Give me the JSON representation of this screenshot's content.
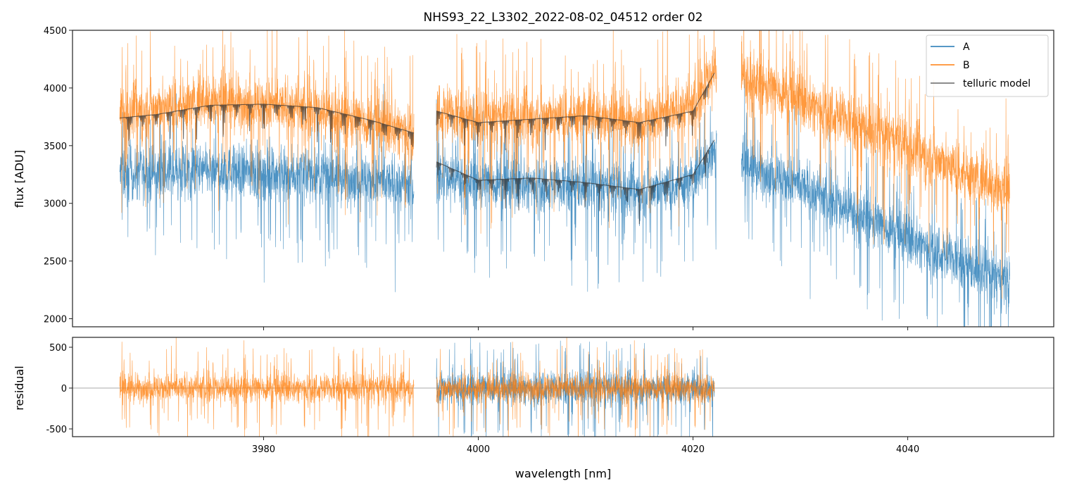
{
  "chart_data": [
    {
      "type": "line",
      "title": "NHS93_22_L3302_2022-08-02_04512  order 02",
      "xlabel": "",
      "ylabel": "flux [ADU]",
      "xlim": [
        3962.2,
        4053.6
      ],
      "ylim": [
        1930,
        4500
      ],
      "yticks": [
        2000,
        2500,
        3000,
        3500,
        4000,
        4500
      ],
      "xticks": [
        3980,
        4000,
        4020,
        4040
      ],
      "legend": {
        "placement": "top-right",
        "entries": [
          "A",
          "B",
          "telluric model"
        ]
      },
      "colors": {
        "A": "#1f77b4",
        "B": "#ff7f0e",
        "telluric": "#333333"
      },
      "series": [
        {
          "name": "A",
          "kind": "noisy",
          "noise": 260,
          "segments": [
            {
              "x": [
                3966.6,
                3975,
                3985,
                3994.0
              ],
              "y": [
                3250,
                3280,
                3250,
                3150
              ]
            },
            {
              "x": [
                3996.1,
                4000,
                4010,
                4015,
                4020,
                4022.2
              ],
              "y": [
                3250,
                3180,
                3150,
                3100,
                3200,
                3500
              ]
            },
            {
              "x": [
                4024.5,
                4030,
                4040,
                4049.5
              ],
              "y": [
                3350,
                3150,
                2700,
                2300
              ]
            }
          ]
        },
        {
          "name": "B",
          "kind": "noisy",
          "noise": 280,
          "segments": [
            {
              "x": [
                3966.6,
                3975,
                3985,
                3994.0
              ],
              "y": [
                3780,
                3900,
                3800,
                3620
              ]
            },
            {
              "x": [
                3996.1,
                4000,
                4010,
                4015,
                4020,
                4022.2
              ],
              "y": [
                3800,
                3720,
                3780,
                3700,
                3850,
                4200
              ]
            },
            {
              "x": [
                4024.5,
                4030,
                4040,
                4049.5
              ],
              "y": [
                4100,
                3900,
                3500,
                3100
              ]
            }
          ]
        },
        {
          "name": "telluric model B",
          "kind": "model",
          "segments": [
            {
              "x": [
                3966.6,
                3970,
                3975,
                3980,
                3985,
                3990,
                3994.0
              ],
              "y": [
                3740,
                3770,
                3850,
                3860,
                3830,
                3720,
                3610
              ]
            },
            {
              "x": [
                3996.1,
                4000,
                4005,
                4010,
                4015,
                4020,
                4022.0
              ],
              "y": [
                3800,
                3700,
                3730,
                3760,
                3700,
                3800,
                4130
              ]
            }
          ]
        },
        {
          "name": "telluric model A",
          "kind": "model",
          "segments": [
            {
              "x": [
                3996.1,
                4000,
                4005,
                4010,
                4015,
                4020,
                4022.0
              ],
              "y": [
                3360,
                3200,
                3220,
                3180,
                3120,
                3250,
                3550
              ]
            }
          ]
        }
      ]
    },
    {
      "type": "line",
      "xlabel": "wavelength [nm]",
      "ylabel": "residual",
      "xlim": [
        3962.2,
        4053.6
      ],
      "ylim": [
        -595,
        621
      ],
      "yticks": [
        -500,
        0,
        500
      ],
      "xticks": [
        3980,
        4000,
        4020,
        4040
      ],
      "xtick_labels": [
        "3980",
        "4000",
        "4020",
        "4040"
      ],
      "series": [
        {
          "name": "A",
          "noise": 230,
          "segments": [
            {
              "x": [
                3996.1,
                4022.0
              ],
              "y": [
                0,
                0
              ]
            }
          ]
        },
        {
          "name": "B",
          "noise": 200,
          "segments": [
            {
              "x": [
                3966.6,
                3994.0
              ],
              "y": [
                0,
                0
              ]
            },
            {
              "x": [
                3996.1,
                4022.0
              ],
              "y": [
                0,
                0
              ]
            }
          ]
        }
      ]
    }
  ]
}
